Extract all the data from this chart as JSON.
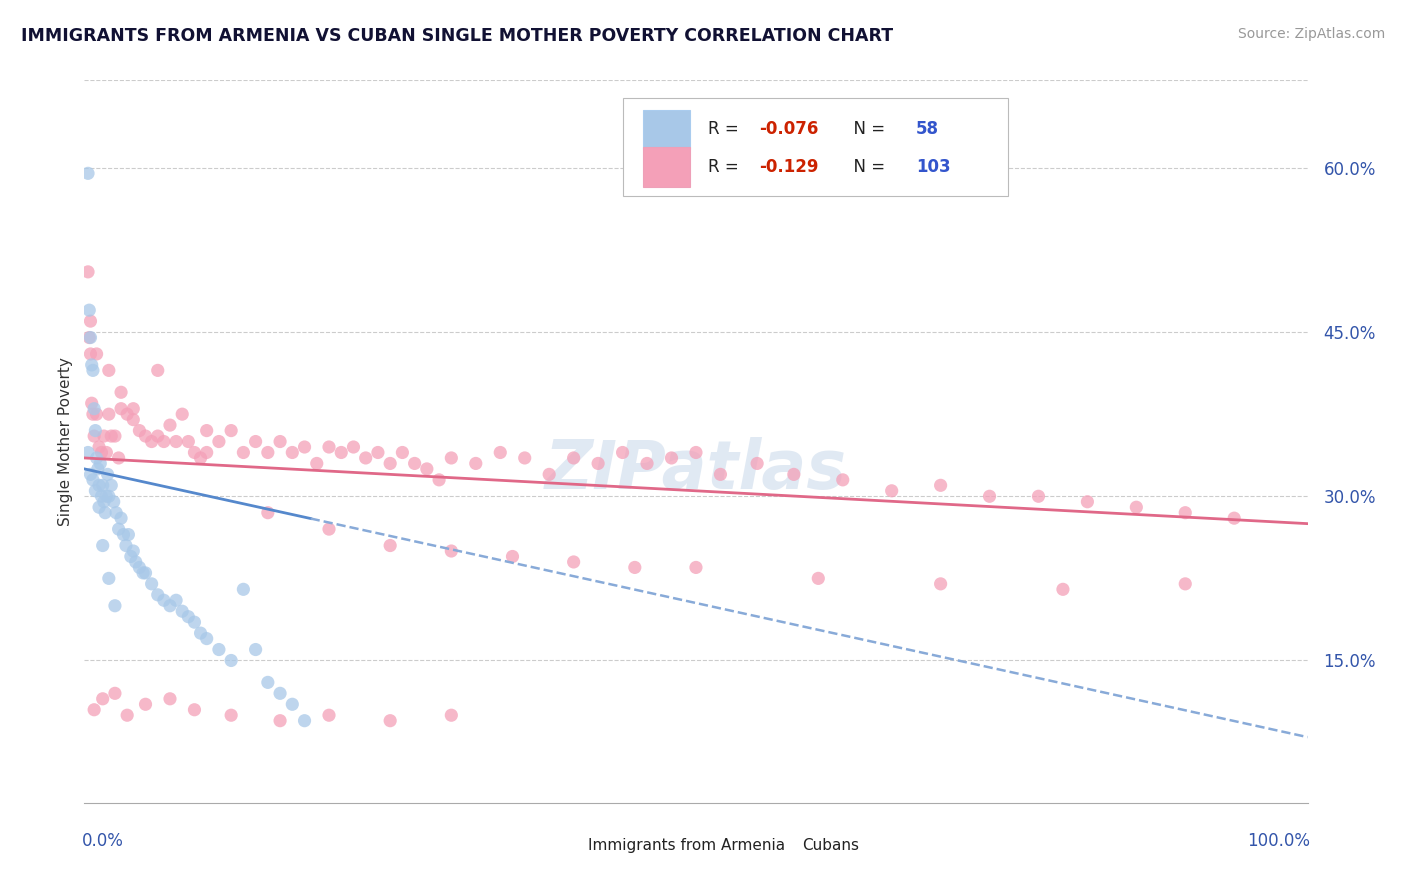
{
  "title": "IMMIGRANTS FROM ARMENIA VS CUBAN SINGLE MOTHER POVERTY CORRELATION CHART",
  "source_text": "Source: ZipAtlas.com",
  "ylabel": "Single Mother Poverty",
  "legend_label1": "Immigrants from Armenia",
  "legend_label2": "Cubans",
  "R1": "-0.076",
  "N1": "58",
  "R2": "-0.129",
  "N2": "103",
  "blue_scatter": "#a8c8e8",
  "pink_scatter": "#f4a0b8",
  "blue_line_solid": "#5588cc",
  "blue_line_dash": "#88aad8",
  "pink_line": "#e06888",
  "ytick_labels": [
    "15.0%",
    "30.0%",
    "45.0%",
    "60.0%"
  ],
  "ytick_vals": [
    0.15,
    0.3,
    0.45,
    0.6
  ],
  "xlim": [
    0.0,
    1.0
  ],
  "ylim": [
    0.02,
    0.68
  ],
  "blue_points_x": [
    0.003,
    0.004,
    0.005,
    0.006,
    0.007,
    0.008,
    0.009,
    0.01,
    0.011,
    0.012,
    0.013,
    0.014,
    0.015,
    0.016,
    0.017,
    0.018,
    0.019,
    0.02,
    0.022,
    0.024,
    0.026,
    0.028,
    0.03,
    0.032,
    0.034,
    0.036,
    0.038,
    0.04,
    0.042,
    0.045,
    0.048,
    0.05,
    0.055,
    0.06,
    0.065,
    0.07,
    0.075,
    0.08,
    0.085,
    0.09,
    0.095,
    0.1,
    0.11,
    0.12,
    0.13,
    0.14,
    0.15,
    0.16,
    0.17,
    0.18,
    0.003,
    0.005,
    0.007,
    0.009,
    0.012,
    0.015,
    0.02,
    0.025
  ],
  "blue_points_y": [
    0.595,
    0.47,
    0.445,
    0.42,
    0.415,
    0.38,
    0.36,
    0.335,
    0.325,
    0.31,
    0.33,
    0.3,
    0.31,
    0.295,
    0.285,
    0.3,
    0.32,
    0.3,
    0.31,
    0.295,
    0.285,
    0.27,
    0.28,
    0.265,
    0.255,
    0.265,
    0.245,
    0.25,
    0.24,
    0.235,
    0.23,
    0.23,
    0.22,
    0.21,
    0.205,
    0.2,
    0.205,
    0.195,
    0.19,
    0.185,
    0.175,
    0.17,
    0.16,
    0.15,
    0.215,
    0.16,
    0.13,
    0.12,
    0.11,
    0.095,
    0.34,
    0.32,
    0.315,
    0.305,
    0.29,
    0.255,
    0.225,
    0.2
  ],
  "pink_points_x": [
    0.003,
    0.004,
    0.005,
    0.006,
    0.007,
    0.008,
    0.01,
    0.012,
    0.014,
    0.016,
    0.018,
    0.02,
    0.022,
    0.025,
    0.028,
    0.03,
    0.035,
    0.04,
    0.045,
    0.05,
    0.055,
    0.06,
    0.065,
    0.07,
    0.075,
    0.08,
    0.085,
    0.09,
    0.095,
    0.1,
    0.11,
    0.12,
    0.13,
    0.14,
    0.15,
    0.16,
    0.17,
    0.18,
    0.19,
    0.2,
    0.21,
    0.22,
    0.23,
    0.24,
    0.25,
    0.26,
    0.27,
    0.28,
    0.29,
    0.3,
    0.32,
    0.34,
    0.36,
    0.38,
    0.4,
    0.42,
    0.44,
    0.46,
    0.48,
    0.5,
    0.52,
    0.55,
    0.58,
    0.62,
    0.66,
    0.7,
    0.74,
    0.78,
    0.82,
    0.86,
    0.9,
    0.94,
    0.005,
    0.01,
    0.02,
    0.03,
    0.04,
    0.06,
    0.1,
    0.15,
    0.2,
    0.25,
    0.3,
    0.35,
    0.4,
    0.45,
    0.5,
    0.6,
    0.7,
    0.8,
    0.9,
    0.008,
    0.015,
    0.025,
    0.035,
    0.05,
    0.07,
    0.09,
    0.12,
    0.16,
    0.2,
    0.25,
    0.3
  ],
  "pink_points_y": [
    0.505,
    0.445,
    0.43,
    0.385,
    0.375,
    0.355,
    0.375,
    0.345,
    0.34,
    0.355,
    0.34,
    0.375,
    0.355,
    0.355,
    0.335,
    0.38,
    0.375,
    0.38,
    0.36,
    0.355,
    0.35,
    0.415,
    0.35,
    0.365,
    0.35,
    0.375,
    0.35,
    0.34,
    0.335,
    0.36,
    0.35,
    0.36,
    0.34,
    0.35,
    0.34,
    0.35,
    0.34,
    0.345,
    0.33,
    0.345,
    0.34,
    0.345,
    0.335,
    0.34,
    0.33,
    0.34,
    0.33,
    0.325,
    0.315,
    0.335,
    0.33,
    0.34,
    0.335,
    0.32,
    0.335,
    0.33,
    0.34,
    0.33,
    0.335,
    0.34,
    0.32,
    0.33,
    0.32,
    0.315,
    0.305,
    0.31,
    0.3,
    0.3,
    0.295,
    0.29,
    0.285,
    0.28,
    0.46,
    0.43,
    0.415,
    0.395,
    0.37,
    0.355,
    0.34,
    0.285,
    0.27,
    0.255,
    0.25,
    0.245,
    0.24,
    0.235,
    0.235,
    0.225,
    0.22,
    0.215,
    0.22,
    0.105,
    0.115,
    0.12,
    0.1,
    0.11,
    0.115,
    0.105,
    0.1,
    0.095,
    0.1,
    0.095,
    0.1
  ]
}
